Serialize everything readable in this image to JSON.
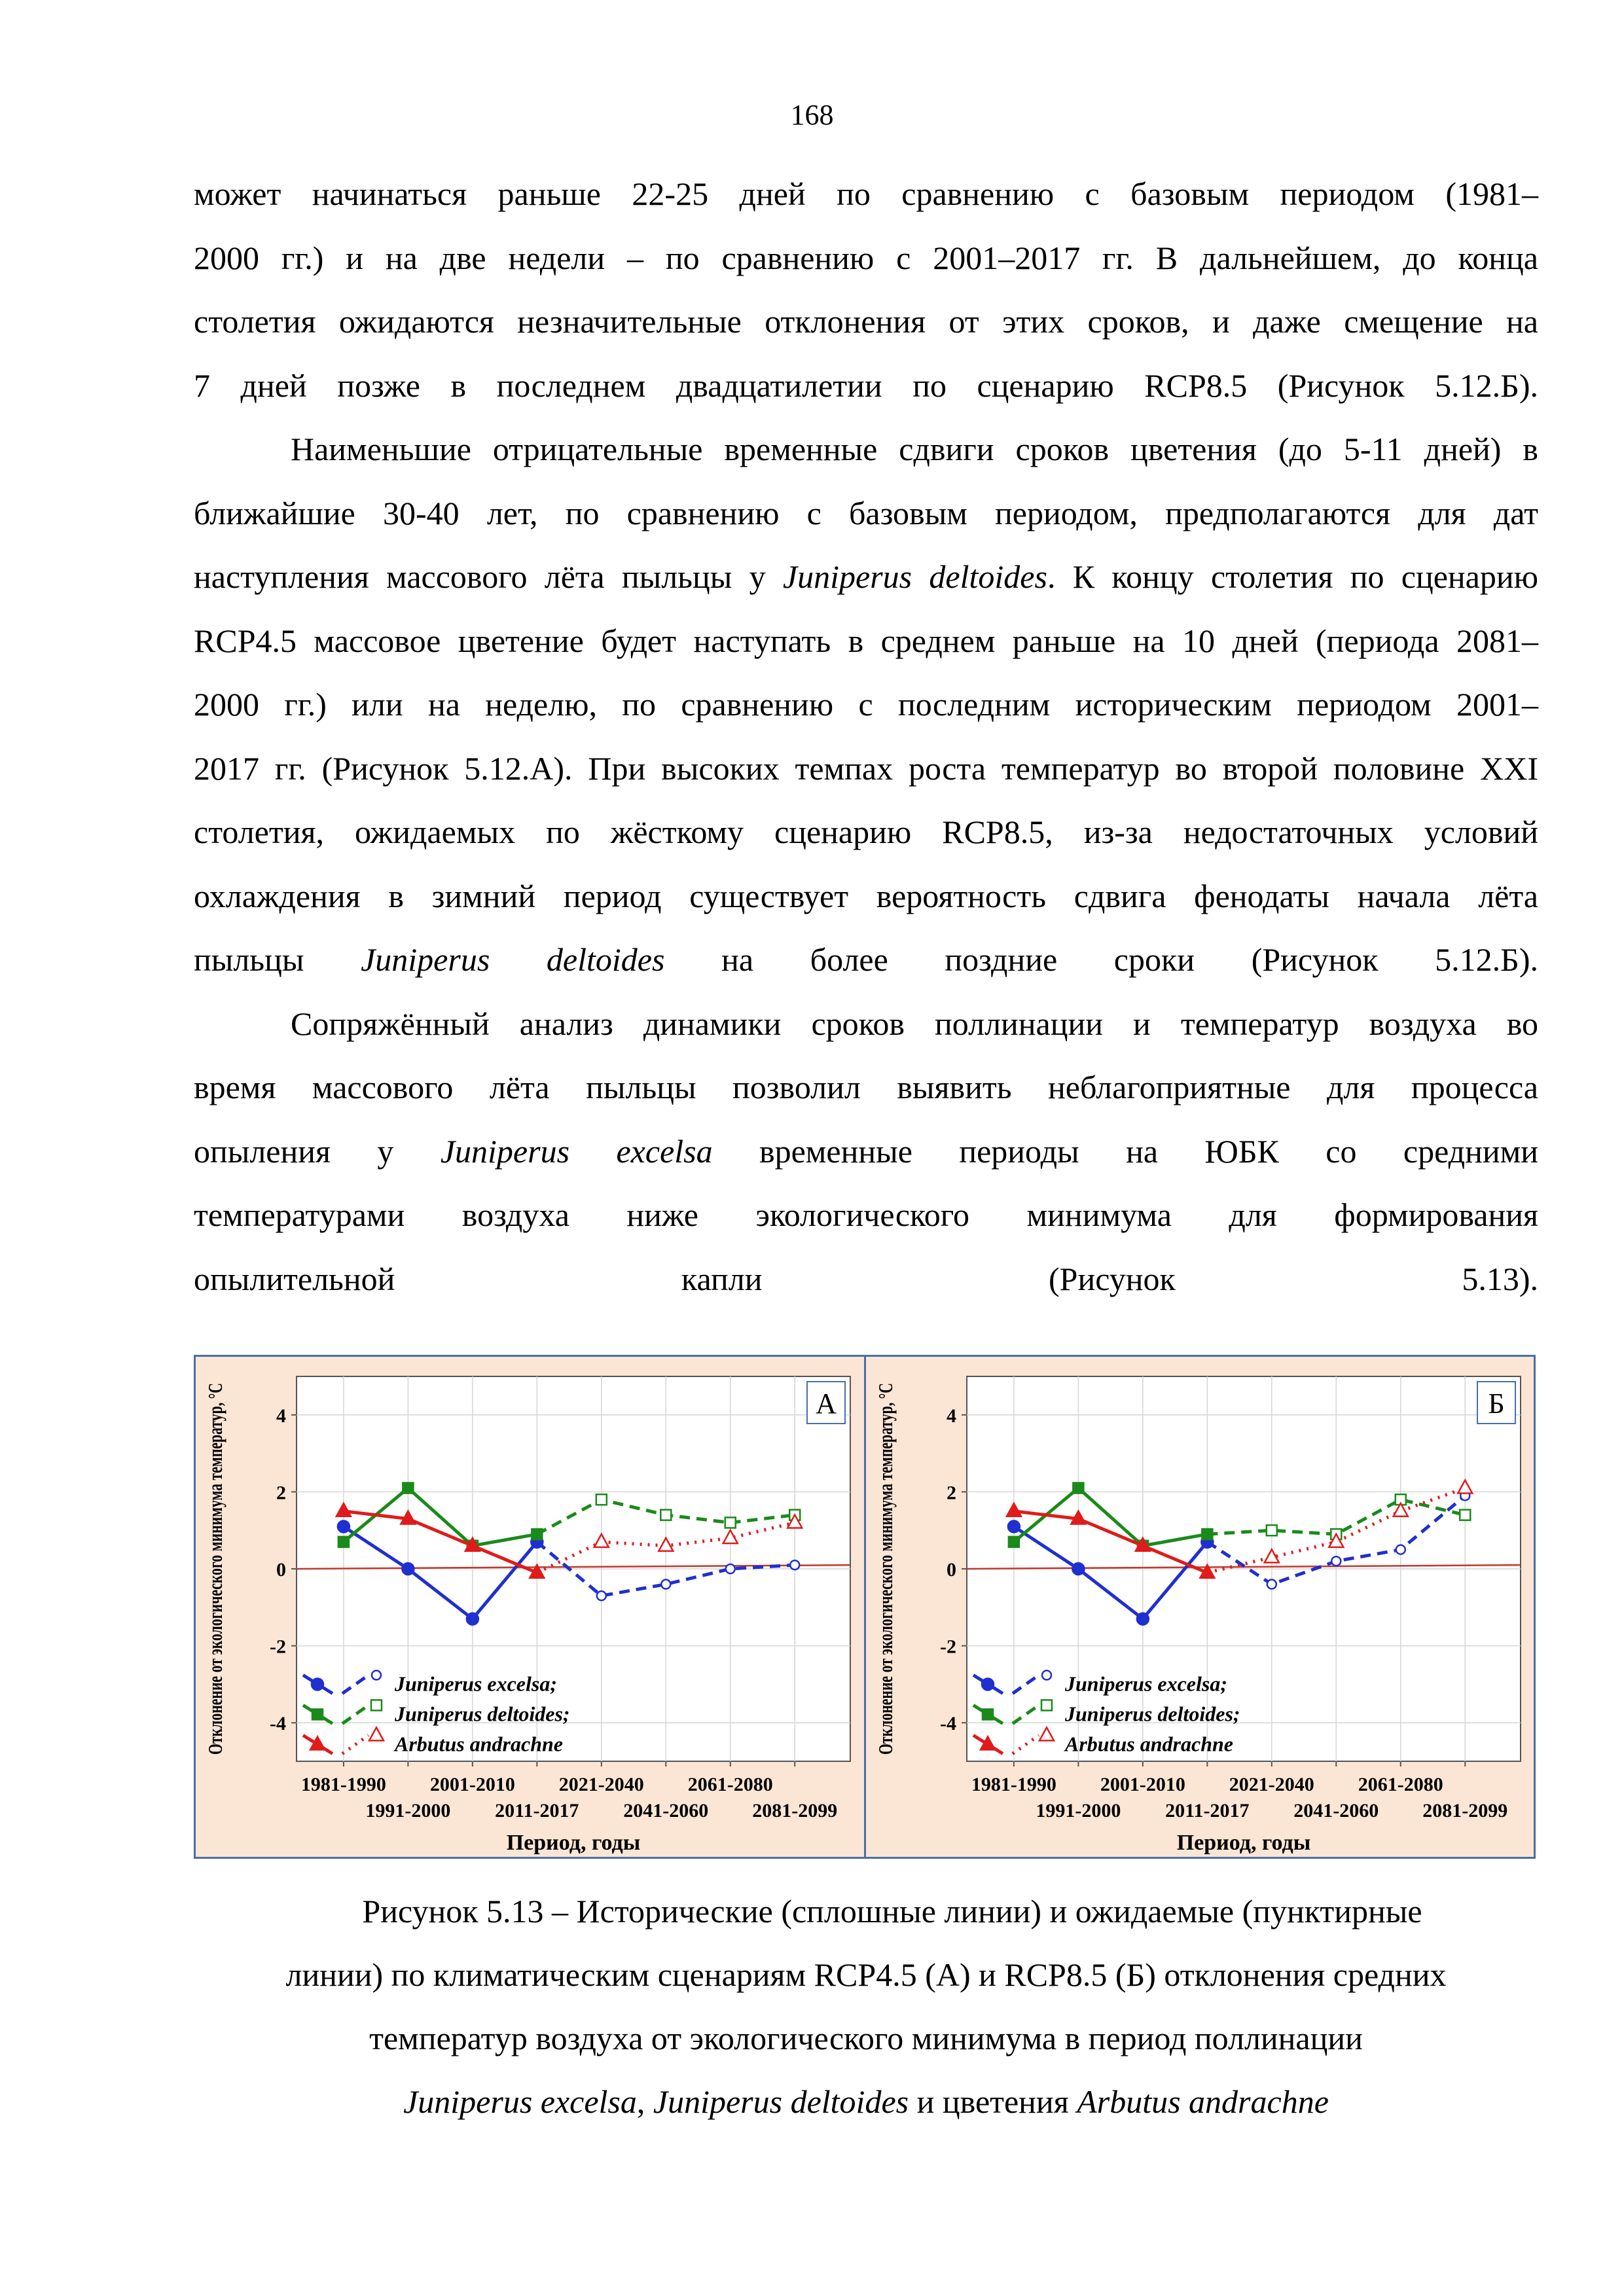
{
  "page_number": "168",
  "paragraphs": [
    {
      "lines": [
        [
          {
            "t": "может начинаться раньше 22-25 дней по сравнению с базовым периодом (1981–"
          }
        ],
        [
          {
            "t": "2000 гг.) и на две недели – по сравнению с 2001–2017 гг. В дальнейшем, до конца"
          }
        ],
        [
          {
            "t": "столетия ожидаются незначительные отклонения от этих сроков, и даже смещение на"
          }
        ],
        [
          {
            "t": "7 дней позже в последнем двадцатилетии по сценарию RCP8.5 (Рисунок 5.12.Б)."
          }
        ]
      ]
    },
    {
      "lines": [
        [
          {
            "t": "Наименьшие отрицательные временные сдвиги сроков цветения (до 5-11 дней) в"
          }
        ],
        [
          {
            "t": "ближайшие 30-40 лет, по сравнению с базовым периодом, предполагаются для дат"
          }
        ],
        [
          {
            "t": "наступления массового лёта пыльцы у "
          },
          {
            "t": "Juniperus deltoides",
            "i": true
          },
          {
            "t": ". К концу столетия по сценарию"
          }
        ],
        [
          {
            "t": "RCP4.5 массовое цветение будет наступать в среднем раньше на 10 дней (периода 2081–"
          }
        ],
        [
          {
            "t": "2000 гг.) или на неделю, по сравнению с последним историческим периодом 2001–"
          }
        ],
        [
          {
            "t": "2017 гг. (Рисунок 5.12.А). При высоких темпах роста температур во второй половине XXI"
          }
        ],
        [
          {
            "t": "столетия, ожидаемых по жёсткому сценарию RCP8.5, из-за недостаточных условий"
          }
        ],
        [
          {
            "t": "охлаждения в зимний период существует вероятность сдвига фенодаты начала лёта"
          }
        ],
        [
          {
            "t": "пыльцы "
          },
          {
            "t": "Juniperus deltoides",
            "i": true
          },
          {
            "t": " на более поздние сроки (Рисунок 5.12.Б)."
          }
        ]
      ]
    },
    {
      "lines": [
        [
          {
            "t": "Сопряжённый анализ динамики сроков поллинации и температур воздуха во"
          }
        ],
        [
          {
            "t": "время массового лёта пыльцы позволил выявить неблагоприятные для процесса"
          }
        ],
        [
          {
            "t": "опыления у "
          },
          {
            "t": "Juniperus excelsa",
            "i": true
          },
          {
            "t": " временные периоды на ЮБК со средними"
          }
        ],
        [
          {
            "t": "температурами воздуха ниже экологического минимума для формирования"
          }
        ],
        [
          {
            "t": "опылительной капли (Рисунок 5.13)."
          }
        ]
      ]
    }
  ],
  "caption": {
    "lines": [
      [
        {
          "t": "Рисунок 5.13 – Исторические (сплошные линии) и ожидаемые (пунктирные"
        }
      ],
      [
        {
          "t": "линии) по климатическим сценариям RCP4.5 (А) и RCP8.5 (Б) отклонения средних"
        }
      ],
      [
        {
          "t": "температур воздуха от экологического минимума в период поллинации"
        }
      ],
      [
        {
          "t": "Juniperus excelsa",
          "i": true
        },
        {
          "t": ", "
        },
        {
          "t": "Juniperus deltoides",
          "i": true
        },
        {
          "t": " и цветения "
        },
        {
          "t": "Arbutus andrachne",
          "i": true
        }
      ]
    ]
  },
  "chart_data": [
    {
      "type": "line",
      "panel_label": "А",
      "xlabel": "Период, годы",
      "ylabel": "Отклонение от экологического минимума температур, °С",
      "categories": [
        "1981-1990",
        "1991-2000",
        "2001-2010",
        "2011-2017",
        "2021-2040",
        "2041-2060",
        "2061-2080",
        "2081-2099"
      ],
      "ylim": [
        -5,
        5
      ],
      "yticks": [
        -4,
        -2,
        0,
        2,
        4
      ],
      "grid": true,
      "legend_position": "bottom-left",
      "reference_line": {
        "y_start": 0,
        "y_end": 0.1,
        "color": "#c0392b"
      },
      "series": [
        {
          "name": "Juniperus excelsa;",
          "color": "#1f2fd0",
          "marker": "circle",
          "historical": [
            1.1,
            0.0,
            -1.3,
            0.7
          ],
          "projected": [
            0.7,
            -0.7,
            -0.4,
            0.0,
            0.1
          ]
        },
        {
          "name": "Juniperus deltoides;",
          "color": "#1a8a1a",
          "marker": "square",
          "historical": [
            0.7,
            2.1,
            0.6,
            0.9
          ],
          "projected": [
            0.9,
            1.8,
            1.4,
            1.2,
            1.4
          ]
        },
        {
          "name": "Arbutus andrachne",
          "color": "#e01b1b",
          "marker": "triangle",
          "historical": [
            1.5,
            1.3,
            0.6,
            -0.1
          ],
          "projected": [
            -0.1,
            0.7,
            0.6,
            0.8,
            1.2
          ]
        }
      ]
    },
    {
      "type": "line",
      "panel_label": "Б",
      "xlabel": "Период, годы",
      "ylabel": "Отклонение от экологического минимума температур, °С",
      "categories": [
        "1981-1990",
        "1991-2000",
        "2001-2010",
        "2011-2017",
        "2021-2040",
        "2041-2060",
        "2061-2080",
        "2081-2099"
      ],
      "ylim": [
        -5,
        5
      ],
      "yticks": [
        -4,
        -2,
        0,
        2,
        4
      ],
      "grid": true,
      "legend_position": "bottom-left",
      "reference_line": {
        "y_start": 0,
        "y_end": 0.1,
        "color": "#c0392b"
      },
      "series": [
        {
          "name": "Juniperus excelsa;",
          "color": "#1f2fd0",
          "marker": "circle",
          "historical": [
            1.1,
            0.0,
            -1.3,
            0.7
          ],
          "projected": [
            0.7,
            -0.4,
            0.2,
            0.5,
            1.9
          ]
        },
        {
          "name": "Juniperus deltoides;",
          "color": "#1a8a1a",
          "marker": "square",
          "historical": [
            0.7,
            2.1,
            0.6,
            0.9
          ],
          "projected": [
            0.9,
            1.0,
            0.9,
            1.8,
            1.4
          ]
        },
        {
          "name": "Arbutus andrachne",
          "color": "#e01b1b",
          "marker": "triangle",
          "historical": [
            1.5,
            1.3,
            0.6,
            -0.1
          ],
          "projected": [
            -0.1,
            0.3,
            0.7,
            1.5,
            2.1
          ]
        }
      ]
    }
  ]
}
